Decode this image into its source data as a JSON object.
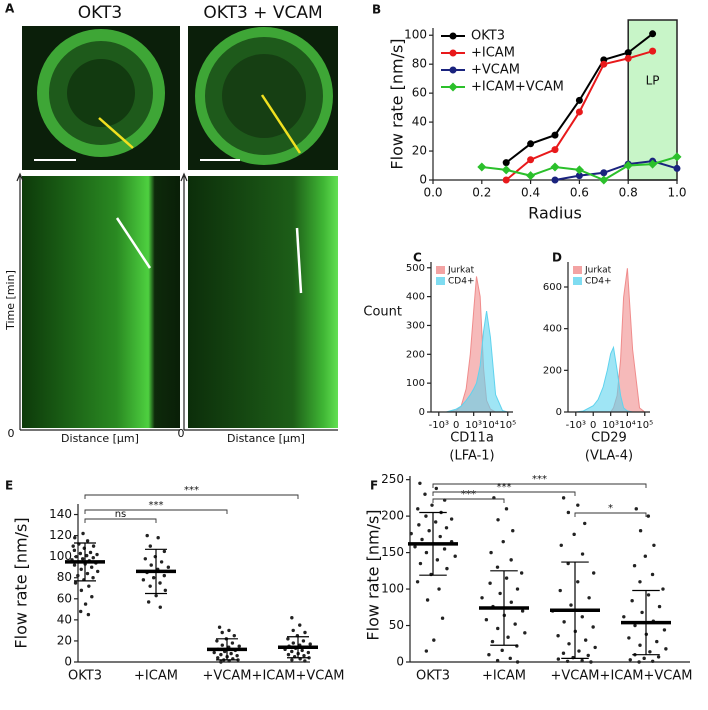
{
  "panel_a": {
    "panel_label": "A",
    "images": [
      {
        "title": "OKT3"
      },
      {
        "title": "OKT3 + VCAM"
      }
    ],
    "y_label": "Time [min]",
    "x_label": "Distance [μm]",
    "origin_label": "0"
  },
  "chart_data": [
    {
      "type": "line",
      "panel_label": "B",
      "x_label": "Radius",
      "y_label": "Flow rate [nm/s]",
      "x": [
        0.2,
        0.3,
        0.4,
        0.5,
        0.6,
        0.7,
        0.8,
        0.9,
        1
      ],
      "series": [
        {
          "name": "OKT3",
          "color": "#000000",
          "marker": "circle",
          "values": [
            null,
            12,
            25,
            31,
            55,
            83,
            88,
            101,
            null
          ]
        },
        {
          "name": "+ICAM",
          "color": "#e8191b",
          "marker": "circle",
          "values": [
            null,
            0,
            14,
            21,
            47,
            80,
            84,
            89,
            null
          ]
        },
        {
          "name": "+VCAM",
          "color": "#1a237e",
          "marker": "circle",
          "values": [
            null,
            null,
            null,
            0,
            3,
            5,
            11,
            13,
            8
          ]
        },
        {
          "name": "+ICAM+VCAM",
          "color": "#2bc02b",
          "marker": "diamond",
          "values": [
            9,
            7,
            3,
            9,
            7,
            0,
            10,
            11,
            16
          ]
        }
      ],
      "shaded_region": {
        "x": [
          0.8,
          1
        ],
        "label": "LP",
        "color": "#c8f5c8"
      },
      "xlim": [
        0,
        1
      ],
      "xticks": [
        {
          "value": 0,
          "label": "0.0"
        },
        0.2,
        0.4,
        0.6,
        0.8,
        {
          "value": 1,
          "label": "1.0"
        }
      ],
      "ylim": [
        0,
        105
      ],
      "yticks": [
        0,
        20,
        40,
        60,
        80,
        100
      ],
      "legend": "top-left"
    },
    {
      "type": "density",
      "panel_label": "C",
      "x_label": [
        "CD11a",
        "(LFA-1)"
      ],
      "y_label": "Count",
      "x_scale": "biexponential",
      "x": [
        -1000,
        -300,
        0,
        100,
        300,
        600,
        1000,
        1500,
        2500,
        4000,
        6000,
        10000,
        20000,
        50000,
        100000
      ],
      "series": [
        {
          "name": "Jurkat",
          "color": "#f08c8c",
          "values": [
            0,
            0,
            5,
            20,
            80,
            200,
            350,
            470,
            400,
            150,
            40,
            10,
            0,
            0,
            0
          ]
        },
        {
          "name": "CD4+",
          "color": "#5fd3ee",
          "values": [
            0,
            0,
            10,
            20,
            40,
            60,
            80,
            100,
            160,
            280,
            350,
            260,
            60,
            5,
            0
          ]
        }
      ],
      "xlim": [
        -3000,
        200000
      ],
      "xticks": [
        {
          "value": -1000,
          "label": "-10³"
        },
        0,
        {
          "value": 1000,
          "label": "10³"
        },
        {
          "value": 10000,
          "label": "10⁴"
        },
        {
          "value": 100000,
          "label": "10⁵"
        }
      ],
      "ylim": [
        0,
        520
      ],
      "yticks": [
        0,
        100,
        200,
        300,
        400,
        500
      ],
      "legend": "top-left"
    },
    {
      "type": "density",
      "panel_label": "D",
      "x_label": [
        "CD29",
        "(VLA-4)"
      ],
      "x_scale": "biexponential",
      "x": [
        -1000,
        -300,
        0,
        100,
        300,
        600,
        1000,
        1500,
        2500,
        4000,
        6000,
        10000,
        20000,
        50000,
        100000
      ],
      "series": [
        {
          "name": "Jurkat",
          "color": "#f08c8c",
          "values": [
            0,
            0,
            0,
            0,
            0,
            0,
            0,
            20,
            80,
            250,
            550,
            690,
            300,
            20,
            0
          ]
        },
        {
          "name": "CD4+",
          "color": "#5fd3ee",
          "values": [
            0,
            5,
            30,
            60,
            120,
            200,
            280,
            310,
            200,
            80,
            20,
            5,
            0,
            0,
            0
          ]
        }
      ],
      "xlim": [
        -3000,
        200000
      ],
      "xticks": [
        {
          "value": -1000,
          "label": "-10³"
        },
        0,
        {
          "value": 1000,
          "label": "10³"
        },
        {
          "value": 10000,
          "label": "10⁴"
        },
        {
          "value": 100000,
          "label": "10⁵"
        }
      ],
      "ylim": [
        0,
        720
      ],
      "yticks": [
        0,
        200,
        400,
        600
      ],
      "legend": "top-left"
    },
    {
      "type": "dotplot",
      "panel_label": "E",
      "y_label": "Flow rate [nm/s]",
      "categories": [
        "OKT3",
        "+ICAM",
        "+VCAM",
        "+ICAM+VCAM"
      ],
      "points": [
        [
          118,
          115,
          112,
          110,
          108,
          106,
          104,
          103,
          102,
          101,
          100,
          99,
          98,
          97,
          96,
          95,
          94,
          93,
          92,
          90,
          88,
          86,
          84,
          82,
          80,
          78,
          75,
          72,
          68,
          62,
          55,
          48,
          45,
          122,
          110
        ],
        [
          120,
          118,
          110,
          105,
          100,
          98,
          95,
          92,
          90,
          88,
          85,
          82,
          80,
          78,
          75,
          72,
          68,
          63,
          57,
          52
        ],
        [
          33,
          30,
          28,
          25,
          22,
          20,
          18,
          16,
          15,
          14,
          12,
          11,
          10,
          9,
          8,
          7,
          6,
          5,
          4,
          3,
          2,
          2,
          1,
          0
        ],
        [
          42,
          35,
          30,
          28,
          25,
          22,
          20,
          18,
          17,
          16,
          15,
          14,
          13,
          12,
          11,
          10,
          9,
          8,
          7,
          6,
          5,
          4,
          3,
          2,
          1
        ]
      ],
      "means": [
        95,
        86,
        12,
        14
      ],
      "sd": [
        18,
        21,
        10,
        10
      ],
      "comparisons": [
        {
          "between": [
            "OKT3",
            "+ICAM"
          ],
          "label": "ns"
        },
        {
          "between": [
            "OKT3",
            "+VCAM"
          ],
          "label": "***"
        },
        {
          "between": [
            "OKT3",
            "+ICAM+VCAM"
          ],
          "label": "***"
        }
      ],
      "ylim": [
        0,
        150
      ],
      "yticks": [
        0,
        20,
        40,
        60,
        80,
        100,
        120,
        140
      ]
    },
    {
      "type": "dotplot",
      "panel_label": "F",
      "y_label": "Flow rate [nm/s]",
      "categories": [
        "OKT3",
        "+ICAM",
        "+VCAM",
        "+ICAM+VCAM"
      ],
      "points": [
        [
          245,
          238,
          230,
          222,
          215,
          210,
          205,
          200,
          196,
          192,
          188,
          184,
          180,
          176,
          172,
          168,
          165,
          162,
          158,
          155,
          150,
          145,
          140,
          135,
          128,
          120,
          110,
          100,
          85,
          60,
          30,
          15
        ],
        [
          225,
          210,
          195,
          180,
          165,
          150,
          140,
          130,
          122,
          115,
          108,
          100,
          94,
          88,
          82,
          76,
          70,
          64,
          58,
          52,
          46,
          40,
          34,
          28,
          22,
          16,
          10,
          5,
          2,
          0
        ],
        [
          225,
          215,
          205,
          190,
          175,
          160,
          148,
          135,
          122,
          110,
          98,
          88,
          78,
          70,
          62,
          55,
          48,
          42,
          36,
          30,
          25,
          20,
          15,
          12,
          9,
          6,
          4,
          2,
          1,
          0
        ],
        [
          210,
          200,
          180,
          160,
          145,
          132,
          120,
          110,
          100,
          92,
          84,
          76,
          68,
          62,
          56,
          50,
          44,
          38,
          33,
          28,
          23,
          18,
          14,
          10,
          7,
          5,
          3,
          1,
          0
        ]
      ],
      "means": [
        162,
        74,
        71,
        54
      ],
      "sd": [
        43,
        51,
        66,
        44
      ],
      "comparisons": [
        {
          "between": [
            "OKT3",
            "+ICAM"
          ],
          "label": "***"
        },
        {
          "between": [
            "OKT3",
            "+VCAM"
          ],
          "label": "***"
        },
        {
          "between": [
            "OKT3",
            "+ICAM+VCAM"
          ],
          "label": "***"
        },
        {
          "between": [
            "+VCAM",
            "+ICAM+VCAM"
          ],
          "label": "*"
        }
      ],
      "ylim": [
        0,
        255
      ],
      "yticks": [
        0,
        50,
        100,
        150,
        200,
        250
      ]
    }
  ]
}
